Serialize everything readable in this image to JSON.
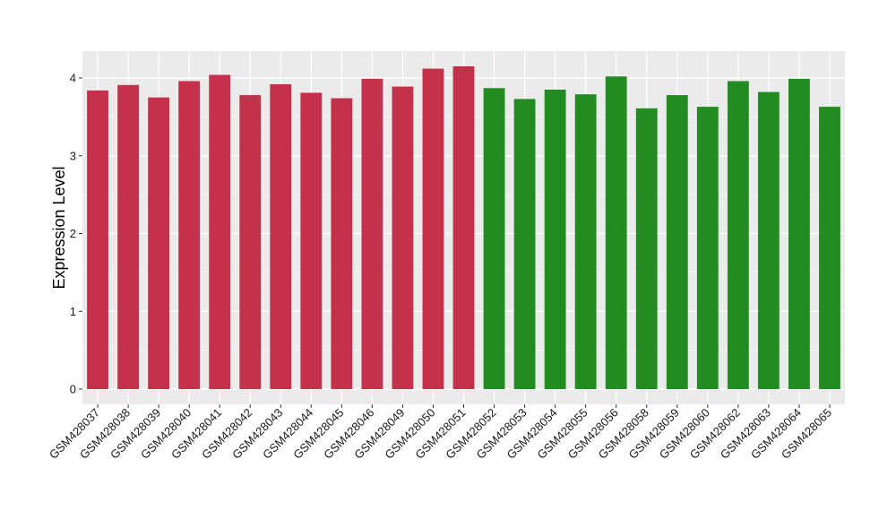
{
  "chart_data": {
    "type": "bar",
    "title": "",
    "xlabel": "",
    "ylabel": "Expression Level",
    "ylim": [
      0,
      4.35
    ],
    "yticks": [
      "0",
      "1",
      "2",
      "3",
      "4"
    ],
    "grid": true,
    "legend": "none",
    "categories": [
      "GSM428037",
      "GSM428038",
      "GSM428039",
      "GSM428040",
      "GSM428041",
      "GSM428042",
      "GSM428043",
      "GSM428044",
      "GSM428045",
      "GSM428046",
      "GSM428049",
      "GSM428050",
      "GSM428051",
      "GSM428052",
      "GSM428053",
      "GSM428054",
      "GSM428055",
      "GSM428056",
      "GSM428058",
      "GSM428059",
      "GSM428060",
      "GSM428062",
      "GSM428063",
      "GSM428064",
      "GSM428065"
    ],
    "values": [
      3.84,
      3.91,
      3.75,
      3.96,
      4.04,
      3.78,
      3.92,
      3.81,
      3.74,
      3.99,
      3.89,
      4.12,
      4.15,
      3.87,
      3.73,
      3.85,
      3.79,
      4.02,
      3.61,
      3.78,
      3.63,
      3.96,
      3.82,
      3.99,
      3.63
    ],
    "groups": [
      "red",
      "red",
      "red",
      "red",
      "red",
      "red",
      "red",
      "red",
      "red",
      "red",
      "red",
      "red",
      "red",
      "green",
      "green",
      "green",
      "green",
      "green",
      "green",
      "green",
      "green",
      "green",
      "green",
      "green",
      "green"
    ],
    "colors": {
      "red": "#C3314B",
      "green": "#228B22",
      "panel": "#EBEBEB",
      "grid": "#FFFFFF"
    }
  }
}
